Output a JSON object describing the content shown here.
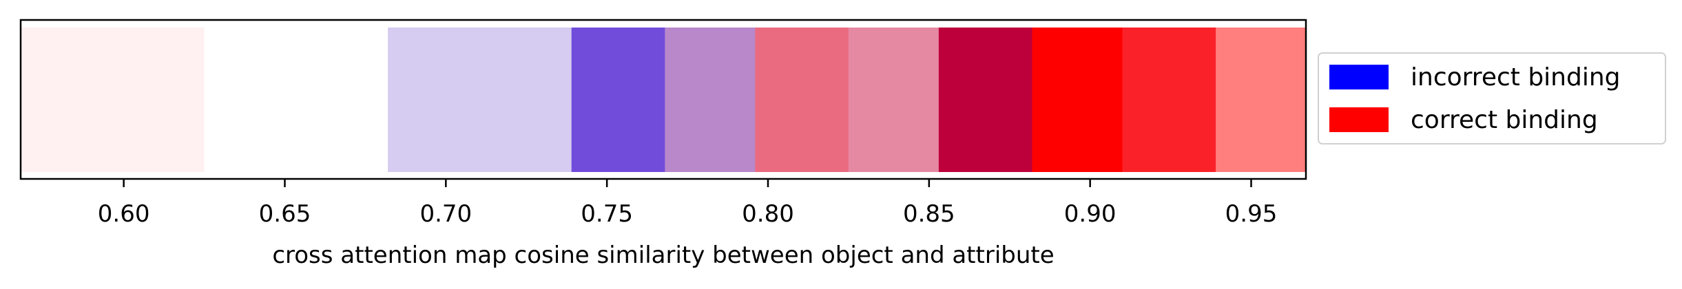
{
  "chart_data": {
    "type": "bar",
    "orientation": "horizontal-color-strip",
    "title": "",
    "xlabel": "cross attention map cosine similarity between object and attribute",
    "ylabel": "",
    "xlim": [
      0.568,
      0.967
    ],
    "xticks": [
      0.6,
      0.65,
      0.7,
      0.75,
      0.8,
      0.85,
      0.9,
      0.95
    ],
    "xtick_labels": [
      "0.60",
      "0.65",
      "0.70",
      "0.75",
      "0.80",
      "0.85",
      "0.90",
      "0.95"
    ],
    "grid": false,
    "legend_position": "right-outside",
    "series": [
      {
        "name": "incorrect binding",
        "color": "#0000ff"
      },
      {
        "name": "correct binding",
        "color": "#ff0000"
      }
    ],
    "bins": [
      {
        "start": 0.568,
        "end": 0.625,
        "color": "#fff1f1"
      },
      {
        "start": 0.625,
        "end": 0.682,
        "color": "#ffffff"
      },
      {
        "start": 0.682,
        "end": 0.739,
        "color": "#d6cbf0"
      },
      {
        "start": 0.739,
        "end": 0.768,
        "color": "#714cdb"
      },
      {
        "start": 0.768,
        "end": 0.796,
        "color": "#b988cb"
      },
      {
        "start": 0.796,
        "end": 0.825,
        "color": "#ea6b80"
      },
      {
        "start": 0.825,
        "end": 0.853,
        "color": "#e589a2"
      },
      {
        "start": 0.853,
        "end": 0.882,
        "color": "#bd003c"
      },
      {
        "start": 0.882,
        "end": 0.91,
        "color": "#ff0000"
      },
      {
        "start": 0.91,
        "end": 0.939,
        "color": "#fb2129"
      },
      {
        "start": 0.939,
        "end": 0.967,
        "color": "#ff7e7e"
      }
    ]
  }
}
